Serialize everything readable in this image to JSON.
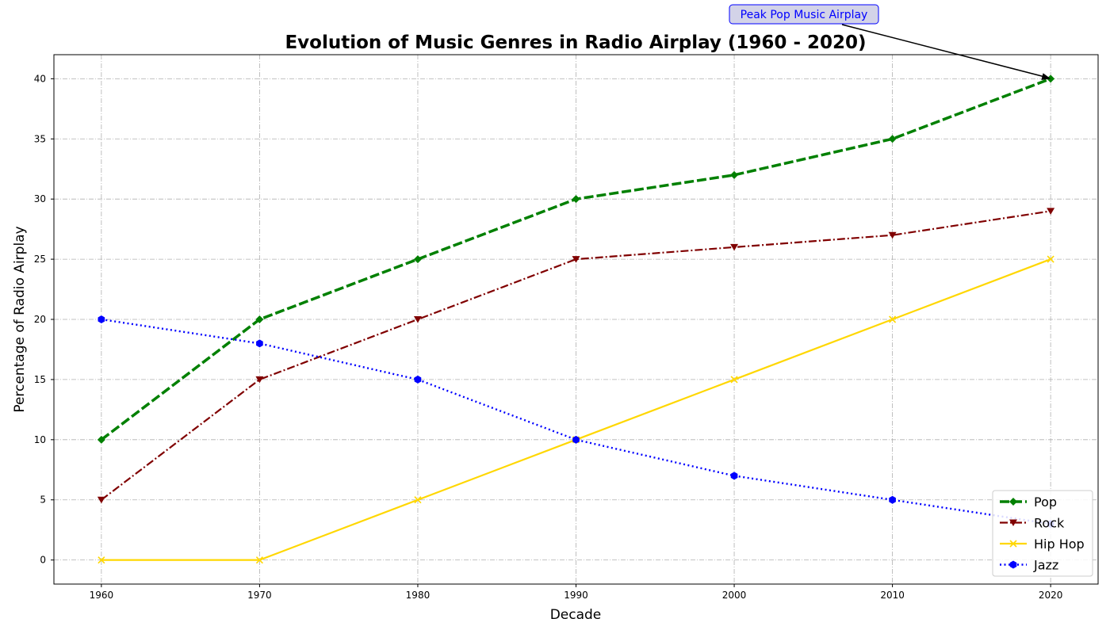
{
  "chart_data": {
    "type": "line",
    "title": "Evolution of Music Genres in Radio Airplay (1960 - 2020)",
    "xlabel": "Decade",
    "ylabel": "Percentage of Radio Airplay",
    "x": [
      1960,
      1970,
      1980,
      1990,
      2000,
      2010,
      2020
    ],
    "xlim": [
      1957,
      2023
    ],
    "ylim": [
      -2,
      42
    ],
    "xticks": [
      1960,
      1970,
      1980,
      1990,
      2000,
      2010,
      2020
    ],
    "yticks": [
      0,
      5,
      10,
      15,
      20,
      25,
      30,
      35,
      40
    ],
    "grid": true,
    "legend_position": "lower-right",
    "series": [
      {
        "name": "Pop",
        "values": [
          10,
          20,
          25,
          30,
          32,
          35,
          40
        ],
        "color": "#008000",
        "line_style": "dashed",
        "marker": "diamond"
      },
      {
        "name": "Rock",
        "values": [
          5,
          15,
          20,
          25,
          26,
          27,
          29
        ],
        "color": "#800000",
        "line_style": "dash-dot",
        "marker": "triangle-down"
      },
      {
        "name": "Hip Hop",
        "values": [
          0,
          0,
          5,
          10,
          15,
          20,
          25
        ],
        "color": "#FFD700",
        "line_style": "solid",
        "marker": "x"
      },
      {
        "name": "Jazz",
        "values": [
          20,
          18,
          15,
          10,
          7,
          5,
          3
        ],
        "color": "#0000FF",
        "line_style": "dotted",
        "marker": "hexagon"
      }
    ],
    "annotations": [
      {
        "text": "Peak Pop Music Airplay",
        "x": 2020,
        "y": 40,
        "text_color": "#0000FF",
        "box_color": "#D3D3E8"
      }
    ]
  }
}
